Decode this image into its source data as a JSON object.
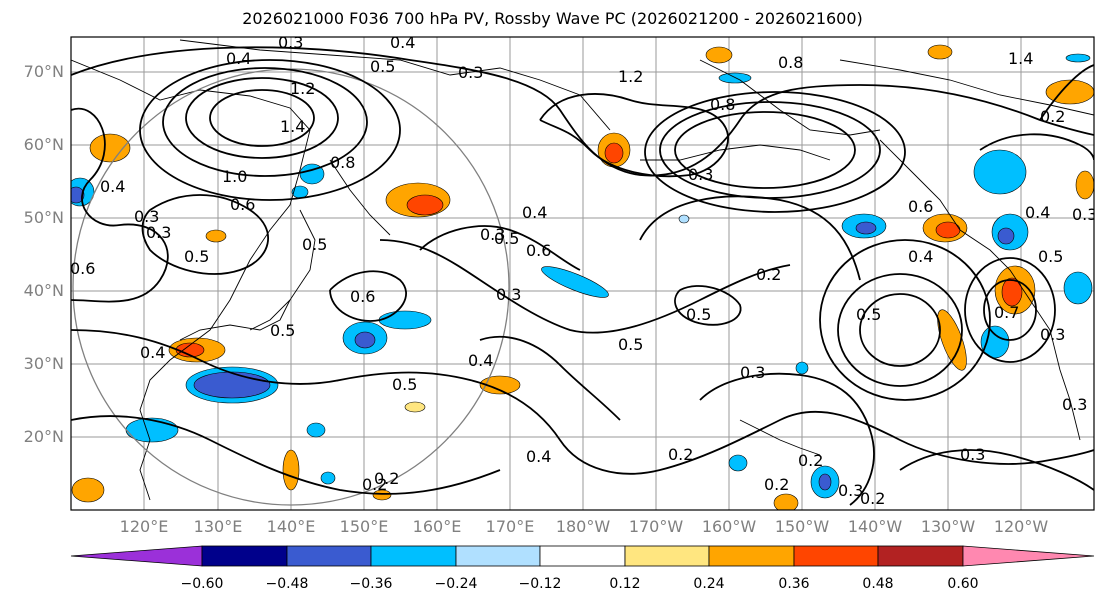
{
  "title": "2026021000 F036 700 hPa PV, Rossby Wave PC (2026021200 - 2026021600)",
  "lat_labels": [
    "70°N",
    "60°N",
    "50°N",
    "40°N",
    "30°N",
    "20°N"
  ],
  "lon_labels": [
    "120°E",
    "130°E",
    "140°E",
    "150°E",
    "160°E",
    "170°E",
    "180°W",
    "170°W",
    "160°W",
    "150°W",
    "140°W",
    "130°W",
    "120°W"
  ],
  "colorbar": {
    "labels": [
      "−0.60",
      "−0.48",
      "−0.36",
      "−0.24",
      "−0.12",
      "0.12",
      "0.24",
      "0.36",
      "0.48",
      "0.60"
    ],
    "colors": [
      "#9b30d9",
      "#00008b",
      "#3a5bd0",
      "#00bfff",
      "#b0e0ff",
      "#ffffff",
      "#ffe680",
      "#ffa500",
      "#ff4500",
      "#b22222",
      "#ff88b0"
    ]
  },
  "contour_labels": [
    "0.4",
    "0.5",
    "0.3",
    "1.2",
    "0.8",
    "1.2",
    "1.4",
    "1.0",
    "0.6",
    "0.8",
    "0.4",
    "0.3",
    "0.5",
    "0.6",
    "0.4",
    "0.5",
    "0.3",
    "0.6",
    "0.5",
    "0.4",
    "0.5",
    "0.3",
    "0.2",
    "0.3",
    "0.8",
    "0.6",
    "0.5",
    "0.5",
    "0.3",
    "0.2",
    "0.2",
    "0.3",
    "0.4",
    "0.3",
    "0.2",
    "0.5",
    "0.3",
    "1.4",
    "0.4",
    "0.5",
    "0.4",
    "0.3",
    "0.4",
    "0.4",
    "0.6",
    "0.5",
    "0.7",
    "0.3",
    "0.3",
    "0.2",
    "0.2",
    "0.2",
    "0.2",
    "0.3"
  ]
}
